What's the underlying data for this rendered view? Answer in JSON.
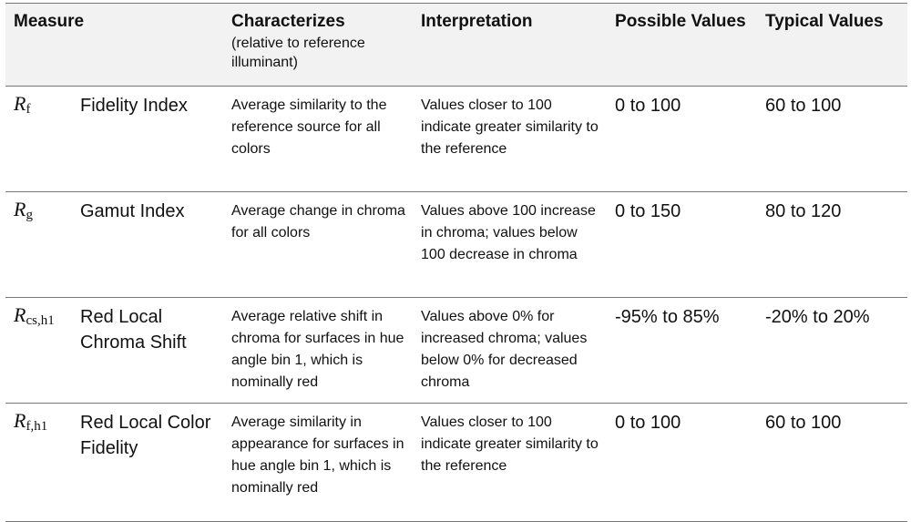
{
  "headers": {
    "measure": "Measure",
    "characterizes": "Characterizes",
    "characterizes_sub": "(relative to reference illuminant)",
    "interpretation": "Interpretation",
    "possible": "Possible Values",
    "typical": "Typical Values"
  },
  "rows": [
    {
      "symbol": "R",
      "subscript": "f",
      "name": "Fidelity Index",
      "characterizes": "Average similarity to the reference source for all colors",
      "interpretation": "Values closer to 100 indicate greater similarity to the reference",
      "possible": "0 to 100",
      "typical": "60 to 100"
    },
    {
      "symbol": "R",
      "subscript": "g",
      "name": "Gamut Index",
      "characterizes": "Average change in chroma for all colors",
      "interpretation": "Values above 100 increase in chroma; values below 100 decrease in chroma",
      "possible": "0 to 150",
      "typical": "80 to 120"
    },
    {
      "symbol": "R",
      "subscript": "cs,h1",
      "name": "Red Local Chroma Shift",
      "characterizes": "Average relative shift in chroma for surfaces in hue angle bin 1, which is nominally red",
      "interpretation": "Values above 0% for increased chroma; values below 0% for decreased chroma",
      "possible": "-95% to 85%",
      "typical": "-20% to 20%"
    },
    {
      "symbol": "R",
      "subscript": "f,h1",
      "name": "Red Local Color Fidelity",
      "characterizes": "Average similarity in appearance for surfaces in hue angle bin 1, which is nominally red",
      "interpretation": "Values closer to 100 indicate greater similarity to the reference",
      "possible": "0 to 100",
      "typical": "60 to 100"
    }
  ]
}
